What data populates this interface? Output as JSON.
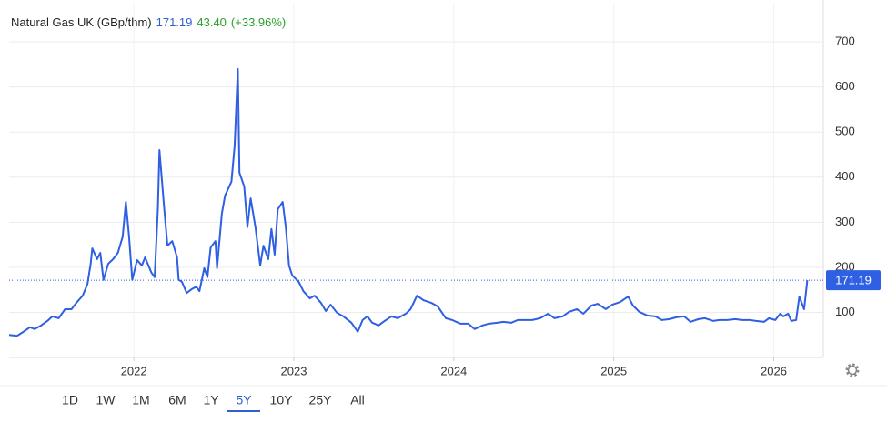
{
  "header": {
    "title": "Natural Gas UK (GBp/thm)",
    "change": "43.40",
    "change_pct": "(+33.96%)"
  },
  "chart_data": {
    "type": "line",
    "color": "#2f5fe3",
    "x": [
      2021.22,
      2021.27,
      2021.31,
      2021.35,
      2021.38,
      2021.42,
      2021.46,
      2021.49,
      2021.53,
      2021.57,
      2021.61,
      2021.64,
      2021.68,
      2021.71,
      2021.73,
      2021.74,
      2021.77,
      2021.79,
      2021.81,
      2021.84,
      2021.87,
      2021.9,
      2021.93,
      2021.95,
      2021.97,
      2021.99,
      2022.02,
      2022.05,
      2022.07,
      2022.11,
      2022.13,
      2022.15,
      2022.16,
      2022.19,
      2022.21,
      2022.24,
      2022.27,
      2022.28,
      2022.3,
      2022.33,
      2022.36,
      2022.39,
      2022.41,
      2022.44,
      2022.46,
      2022.48,
      2022.51,
      2022.52,
      2022.55,
      2022.57,
      2022.61,
      2022.63,
      2022.65,
      2022.66,
      2022.69,
      2022.71,
      2022.73,
      2022.76,
      2022.79,
      2022.81,
      2022.84,
      2022.86,
      2022.88,
      2022.9,
      2022.93,
      2022.95,
      2022.97,
      2022.99,
      2023.03,
      2023.06,
      2023.1,
      2023.13,
      2023.17,
      2023.2,
      2023.23,
      2023.27,
      2023.31,
      2023.36,
      2023.4,
      2023.43,
      2023.46,
      2023.49,
      2023.53,
      2023.56,
      2023.61,
      2023.65,
      2023.7,
      2023.73,
      2023.77,
      2023.81,
      2023.86,
      2023.9,
      2023.95,
      2023.99,
      2024.04,
      2024.09,
      2024.13,
      2024.18,
      2024.22,
      2024.27,
      2024.31,
      2024.36,
      2024.4,
      2024.45,
      2024.49,
      2024.54,
      2024.59,
      2024.63,
      2024.68,
      2024.72,
      2024.77,
      2024.81,
      2024.86,
      2024.9,
      2024.95,
      2024.99,
      2025.04,
      2025.09,
      2025.12,
      2025.16,
      2025.21,
      2025.26,
      2025.3,
      2025.35,
      2025.39,
      2025.44,
      2025.48,
      2025.53,
      2025.57,
      2025.62,
      2025.66,
      2025.71,
      2025.76,
      2025.8,
      2025.85,
      2025.89,
      2025.94,
      2025.97,
      2026.01,
      2026.04,
      2026.06,
      2026.09,
      2026.11,
      2026.14,
      2026.16,
      2026.19,
      2026.21
    ],
    "values": [
      50,
      48,
      57,
      67,
      63,
      71,
      81,
      91,
      87,
      107,
      107,
      121,
      137,
      163,
      208,
      242,
      218,
      232,
      172,
      208,
      218,
      232,
      268,
      345,
      268,
      172,
      216,
      204,
      222,
      188,
      178,
      329,
      460,
      329,
      248,
      258,
      222,
      172,
      168,
      143,
      151,
      157,
      147,
      198,
      178,
      244,
      258,
      198,
      319,
      359,
      390,
      470,
      640,
      410,
      379,
      289,
      353,
      289,
      204,
      248,
      218,
      285,
      228,
      329,
      345,
      289,
      204,
      182,
      168,
      147,
      131,
      137,
      121,
      103,
      117,
      99,
      91,
      77,
      57,
      83,
      91,
      77,
      71,
      79,
      91,
      87,
      97,
      107,
      137,
      127,
      121,
      113,
      87,
      83,
      75,
      75,
      63,
      71,
      75,
      77,
      79,
      77,
      83,
      83,
      83,
      87,
      97,
      87,
      91,
      101,
      107,
      97,
      115,
      119,
      107,
      117,
      123,
      135,
      115,
      101,
      93,
      91,
      83,
      85,
      89,
      91,
      79,
      85,
      87,
      81,
      83,
      83,
      85,
      83,
      83,
      81,
      79,
      87,
      83,
      97,
      91,
      97,
      81,
      83,
      135,
      107,
      171.19
    ],
    "xlim": [
      2021.22,
      2026.31
    ],
    "xticks": [
      2022,
      2023,
      2024,
      2025,
      2026
    ],
    "ylim": [
      0,
      785
    ],
    "yticks": [
      100,
      200,
      300,
      400,
      500,
      600,
      700
    ],
    "grid": true
  },
  "ranges": [
    "1D",
    "1W",
    "1M",
    "6M",
    "1Y",
    "5Y",
    "10Y",
    "25Y",
    "All"
  ],
  "selected_range": 5
}
